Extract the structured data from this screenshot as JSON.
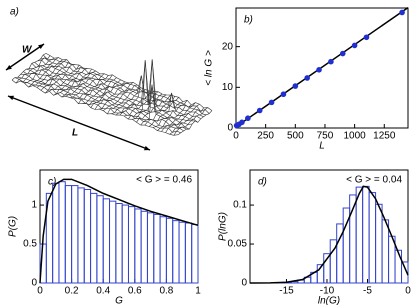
{
  "chart_data": [
    {
      "type": "surface",
      "label": "a)",
      "annotations": [
        "W",
        "L"
      ]
    },
    {
      "type": "scatter",
      "label": "b)",
      "xlabel": "L",
      "ylabel": "< ln G >",
      "xlim": [
        0,
        1450
      ],
      "ylim": [
        0,
        29.5
      ],
      "xticks": [
        0,
        250,
        500,
        750,
        1000,
        1250
      ],
      "yticks": [
        0,
        10,
        20
      ],
      "series": [
        {
          "mode": "line",
          "color": "#000000",
          "x": [
            0,
            1450
          ],
          "values": [
            0.3,
            29.6
          ]
        },
        {
          "mode": "markers",
          "color": "#1f2fd0",
          "x": [
            5,
            25,
            50,
            100,
            200,
            300,
            400,
            500,
            600,
            700,
            800,
            900,
            1000,
            1100,
            1400
          ],
          "values": [
            0.6,
            0.9,
            1.4,
            2.4,
            4.3,
            6.3,
            8.3,
            10.3,
            12.3,
            14.3,
            16.3,
            18.3,
            20.3,
            22.3,
            28.4
          ]
        }
      ]
    },
    {
      "type": "histogram",
      "label": "c)",
      "annotation": "< G > = 0.46",
      "xlabel": "G",
      "ylabel": "P(G)",
      "xlim": [
        0,
        1
      ],
      "ylim": [
        0,
        1.45
      ],
      "xticks": [
        0,
        0.2,
        0.4,
        0.6,
        0.8,
        1
      ],
      "yticks": [
        0,
        0.5,
        1
      ],
      "bar_color": "#3344cc",
      "bins": [
        0,
        0.04,
        0.08,
        0.12,
        0.16,
        0.2,
        0.24,
        0.28,
        0.32,
        0.36,
        0.4,
        0.44,
        0.48,
        0.52,
        0.56,
        0.6,
        0.64,
        0.68,
        0.72,
        0.76,
        0.8,
        0.84,
        0.88,
        0.92,
        0.96,
        1
      ],
      "counts": [
        0.5,
        1.15,
        1.28,
        1.3,
        1.25,
        1.25,
        1.22,
        1.2,
        1.15,
        1.12,
        1.08,
        1.05,
        1.02,
        1.0,
        0.98,
        0.95,
        0.92,
        0.9,
        0.88,
        0.85,
        0.83,
        0.8,
        0.78,
        0.77,
        0.75
      ],
      "curve": {
        "color": "#000000",
        "x": [
          0,
          0.02,
          0.05,
          0.1,
          0.15,
          0.2,
          0.3,
          0.4,
          0.5,
          0.6,
          0.7,
          0.8,
          0.9,
          1.0
        ],
        "values": [
          0,
          0.6,
          1.05,
          1.27,
          1.33,
          1.33,
          1.25,
          1.15,
          1.07,
          0.99,
          0.92,
          0.86,
          0.8,
          0.74
        ]
      }
    },
    {
      "type": "histogram",
      "label": "d)",
      "annotation": "< G > = 0.04",
      "xlabel": "ln(G)",
      "ylabel": "P(lnG)",
      "xlim": [
        -19.5,
        0
      ],
      "ylim": [
        0,
        0.145
      ],
      "xticks": [
        -15,
        -10,
        -5,
        0
      ],
      "yticks": [
        0,
        0.05,
        0.1
      ],
      "bar_color": "#3344cc",
      "bins": [
        -16,
        -15.2,
        -14.4,
        -13.6,
        -12.8,
        -12,
        -11.2,
        -10.4,
        -9.6,
        -8.8,
        -8,
        -7.2,
        -6.4,
        -5.6,
        -4.8,
        -4,
        -3.2,
        -2.4,
        -1.6,
        -0.8,
        0
      ],
      "counts": [
        0.0003,
        0.0007,
        0.0017,
        0.0037,
        0.0074,
        0.0137,
        0.0235,
        0.0376,
        0.0554,
        0.0758,
        0.0962,
        0.113,
        0.123,
        0.124,
        0.116,
        0.101,
        0.081,
        0.06,
        0.042,
        0.027
      ],
      "curve": {
        "color": "#000000",
        "x": [
          -19.5,
          -17,
          -15,
          -13,
          -11,
          -9,
          -8,
          -7,
          -6,
          -5.5,
          -5,
          -4,
          -3,
          -2,
          -1,
          0
        ],
        "values": [
          0,
          0.0002,
          0.0009,
          0.0045,
          0.017,
          0.045,
          0.066,
          0.09,
          0.115,
          0.124,
          0.123,
          0.108,
          0.085,
          0.06,
          0.034,
          0.01
        ]
      }
    }
  ]
}
